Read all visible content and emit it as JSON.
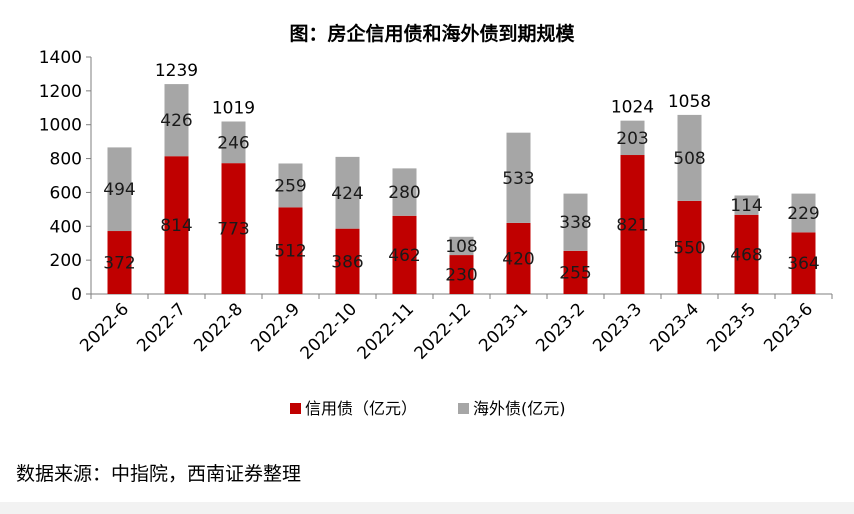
{
  "chart_data": {
    "type": "bar",
    "stacked": true,
    "title": "图：房企信用债和海外债到期规模",
    "categories": [
      "2022-6",
      "2022-7",
      "2022-8",
      "2022-9",
      "2022-10",
      "2022-11",
      "2022-12",
      "2023-1",
      "2023-2",
      "2023-3",
      "2023-4",
      "2023-5",
      "2023-6"
    ],
    "series": [
      {
        "name": "信用债（亿元）",
        "color": "#c00000",
        "values": [
          372,
          814,
          773,
          512,
          386,
          462,
          230,
          420,
          255,
          821,
          550,
          468,
          364
        ]
      },
      {
        "name": "海外债(亿元)",
        "color": "#a6a6a6",
        "values": [
          494,
          426,
          246,
          259,
          424,
          280,
          108,
          533,
          338,
          203,
          508,
          114,
          229
        ]
      }
    ],
    "totals": {
      "2022-7": "1239",
      "2022-8": "1019",
      "2023-3": "1024",
      "2023-4": "1058"
    },
    "ylim": [
      0,
      1400
    ],
    "yticks": [
      "0",
      "200",
      "400",
      "600",
      "800",
      "1000",
      "1200",
      "1400"
    ],
    "legend_position": "bottom-left",
    "grid": false
  },
  "footer": {
    "source": "数据来源：中指院，西南证券整理"
  }
}
